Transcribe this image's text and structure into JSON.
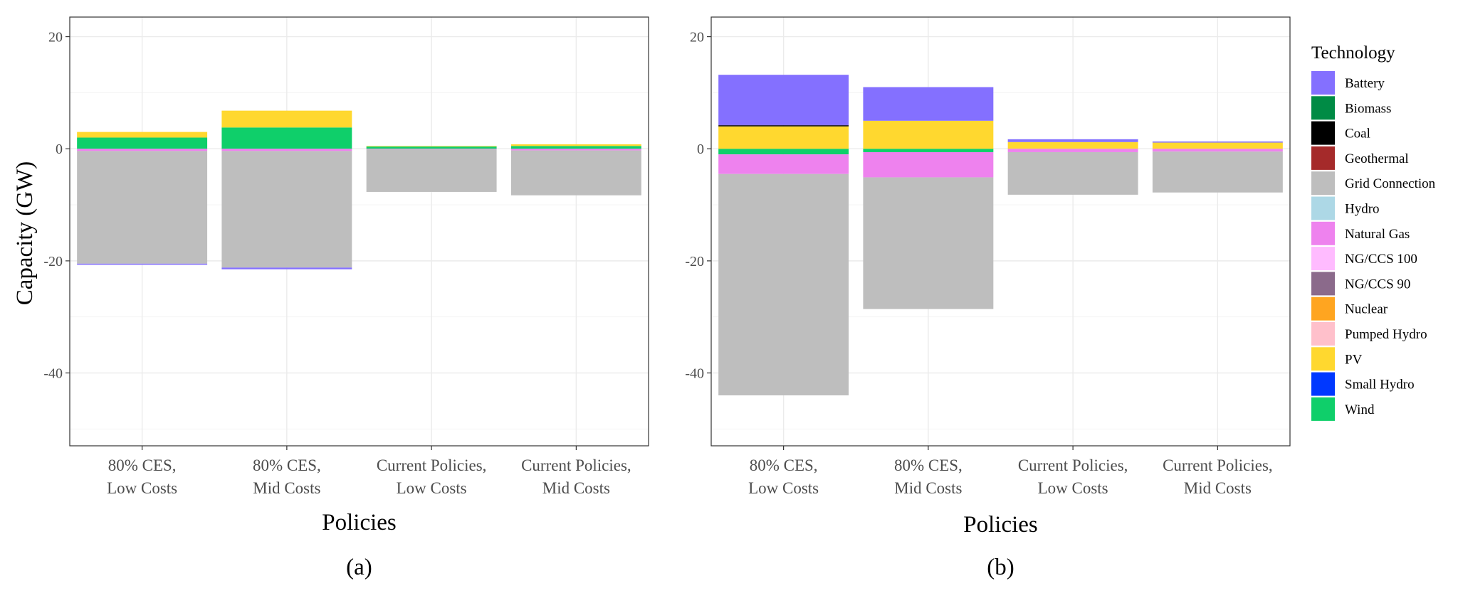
{
  "ylabel": "Capacity (GW)",
  "chart_data": [
    {
      "type": "bar",
      "stacked": true,
      "panel_label": "(a)",
      "xlabel": "Policies",
      "ylabel": "Capacity (GW)",
      "ylim": [
        -53,
        23.5
      ],
      "yticks": [
        20,
        0,
        -20,
        -40
      ],
      "yticks_labels": [
        "20",
        "0",
        "-20",
        "-40"
      ],
      "categories": [
        [
          "80% CES,",
          "Low Costs"
        ],
        [
          "80% CES,",
          "Mid Costs"
        ],
        [
          "Current Policies,",
          "Low Costs"
        ],
        [
          "Current Policies,",
          "Mid Costs"
        ]
      ],
      "series": [
        {
          "name": "Wind",
          "values": [
            2.0,
            3.8,
            0.4,
            0.5
          ]
        },
        {
          "name": "PV",
          "values": [
            1.0,
            3.0,
            0.1,
            0.3
          ]
        },
        {
          "name": "Natural Gas",
          "values": [
            -0.4,
            -0.4,
            -0.1,
            -0.3
          ]
        },
        {
          "name": "Grid Connection",
          "values": [
            -20.1,
            -20.8,
            -7.6,
            -8.0
          ]
        },
        {
          "name": "Battery",
          "values": [
            -0.2,
            -0.3,
            0,
            0
          ]
        }
      ]
    },
    {
      "type": "bar",
      "stacked": true,
      "panel_label": "(b)",
      "xlabel": "Policies",
      "ylabel": "",
      "ylim": [
        -53,
        23.5
      ],
      "yticks": [
        20,
        0,
        -20,
        -40
      ],
      "yticks_labels": [
        "20",
        "0",
        "-20",
        "-40"
      ],
      "categories": [
        [
          "80% CES,",
          "Low Costs"
        ],
        [
          "80% CES,",
          "Mid Costs"
        ],
        [
          "Current Policies,",
          "Low Costs"
        ],
        [
          "Current Policies,",
          "Mid Costs"
        ]
      ],
      "series": [
        {
          "name": "Wind",
          "values": [
            -1.0,
            -0.6,
            0,
            0
          ]
        },
        {
          "name": "PV",
          "values": [
            4.0,
            5.0,
            1.2,
            1.1
          ]
        },
        {
          "name": "Coal",
          "values": [
            0.2,
            0,
            0,
            0
          ]
        },
        {
          "name": "Battery",
          "values": [
            9.0,
            6.0,
            0.5,
            0.2
          ]
        },
        {
          "name": "Natural Gas",
          "values": [
            -3.5,
            -4.5,
            -0.6,
            -0.5
          ]
        },
        {
          "name": "Grid Connection",
          "values": [
            -39.5,
            -23.5,
            -7.6,
            -7.3
          ]
        }
      ]
    }
  ],
  "legend": {
    "title": "Technology",
    "items": [
      {
        "label": "Battery",
        "color": "#8470FF"
      },
      {
        "label": "Biomass",
        "color": "#008B45"
      },
      {
        "label": "Coal",
        "color": "#000000"
      },
      {
        "label": "Geothermal",
        "color": "#A52A2A"
      },
      {
        "label": "Grid Connection",
        "color": "#BEBEBE"
      },
      {
        "label": "Hydro",
        "color": "#ADD8E6"
      },
      {
        "label": "Natural Gas",
        "color": "#EE82EE"
      },
      {
        "label": "NG/CCS 100",
        "color": "#FFBBFF"
      },
      {
        "label": "NG/CCS 90",
        "color": "#8B6A8B"
      },
      {
        "label": "Nuclear",
        "color": "#FFA520"
      },
      {
        "label": "Pumped Hydro",
        "color": "#FFC0CB"
      },
      {
        "label": "PV",
        "color": "#FFD82F"
      },
      {
        "label": "Small Hydro",
        "color": "#0038FF"
      },
      {
        "label": "Wind",
        "color": "#0FCF6A"
      }
    ]
  }
}
